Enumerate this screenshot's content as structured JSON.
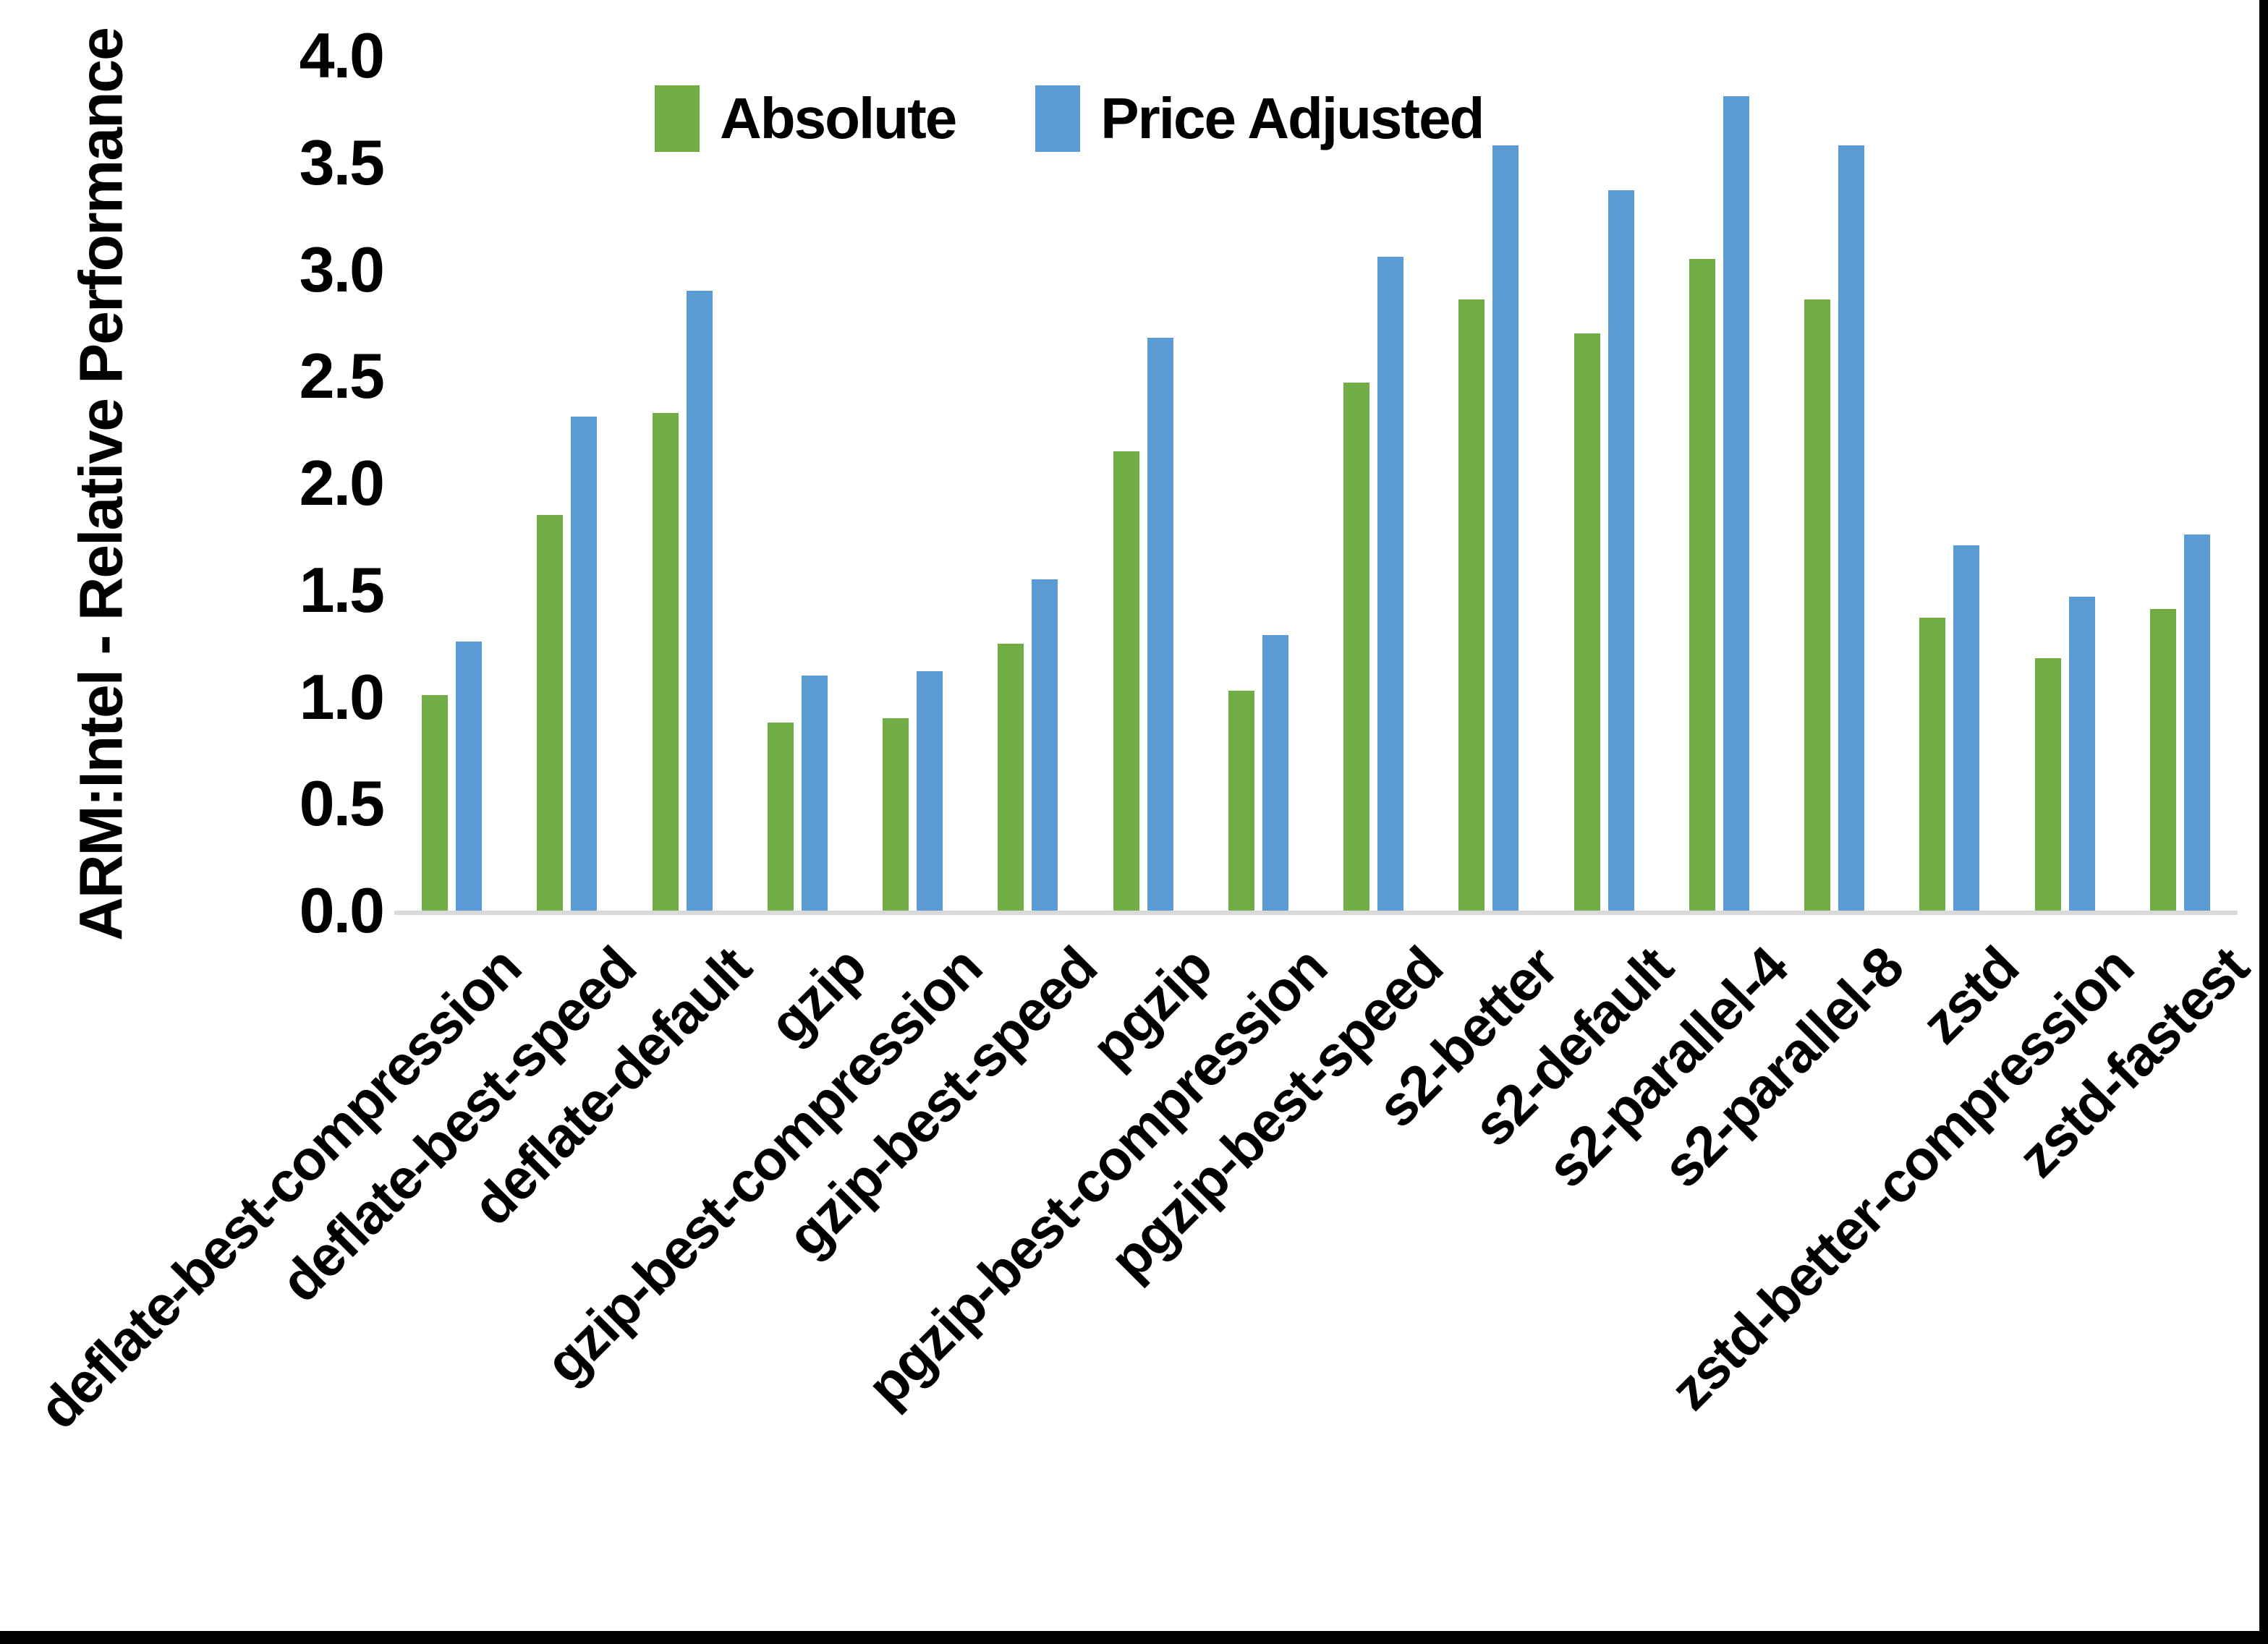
{
  "chart_data": {
    "type": "bar",
    "title": "",
    "xlabel": "",
    "ylabel": "ARM:Intel - Relative Performance",
    "ylim": [
      0.0,
      4.0
    ],
    "yticks": [
      "4.0",
      "3.5",
      "3.0",
      "2.5",
      "2.0",
      "1.5",
      "1.0",
      "0.5",
      "0.0"
    ],
    "grid": false,
    "legend_position": "top-center",
    "axis_line_color": "#d9d9d9",
    "categories": [
      "deflate-best-compression",
      "deflate-best-speed",
      "deflate-default",
      "gzip",
      "gzip-best-compression",
      "gzip-best-speed",
      "pgzip",
      "pgzip-best-compression",
      "pgzip-best-speed",
      "s2-better",
      "s2-default",
      "s2-parallel-4",
      "s2-parallel-8",
      "zstd",
      "zstd-better-compression",
      "zstd-fastest"
    ],
    "series": [
      {
        "name": "Absolute",
        "color": "#70AD47",
        "values": [
          1.01,
          1.85,
          2.33,
          0.88,
          0.9,
          1.25,
          2.15,
          1.03,
          2.47,
          2.86,
          2.7,
          3.05,
          2.86,
          1.37,
          1.18,
          1.41
        ]
      },
      {
        "name": "Price Adjusted",
        "color": "#5B9BD5",
        "values": [
          1.26,
          2.31,
          2.9,
          1.1,
          1.12,
          1.55,
          2.68,
          1.29,
          3.06,
          3.58,
          3.37,
          3.81,
          3.58,
          1.71,
          1.47,
          1.76
        ]
      }
    ]
  }
}
